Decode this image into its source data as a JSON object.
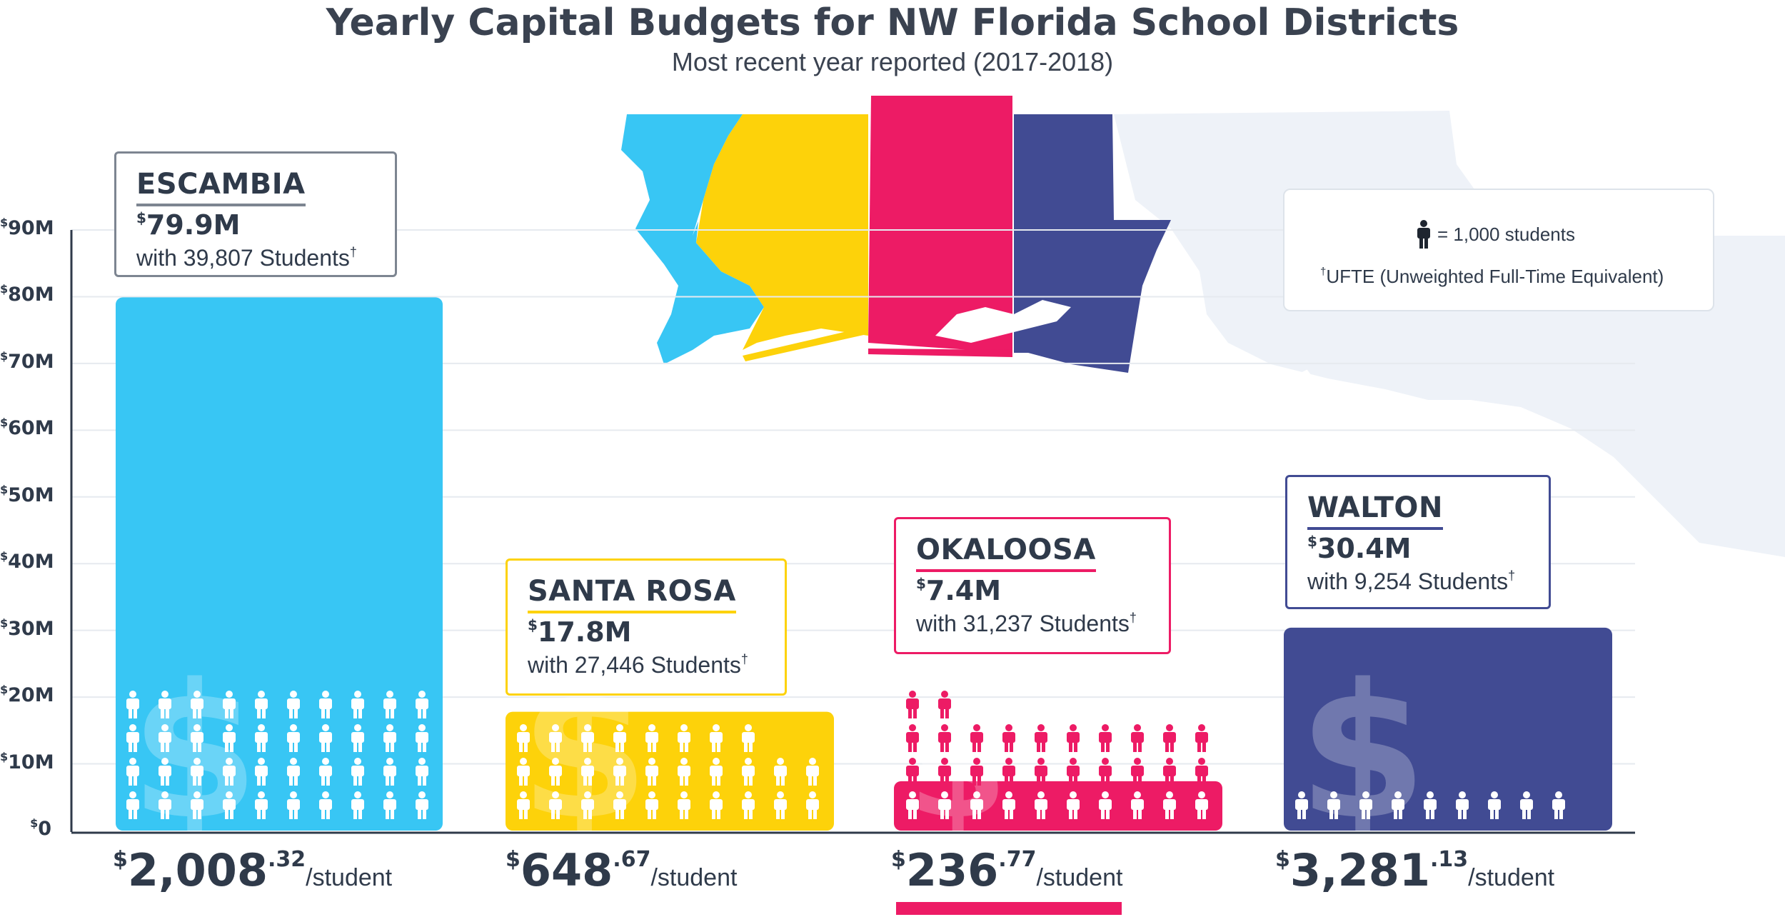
{
  "chart_data": {
    "type": "bar",
    "title": "Yearly Capital Budgets for NW Florida School Districts",
    "subtitle": "Most recent year reported (2017-2018)",
    "ylim": [
      0,
      90
    ],
    "yticks": [
      {
        "sup": "$",
        "label": "90M",
        "value": 90
      },
      {
        "sup": "$",
        "label": "80M",
        "value": 80
      },
      {
        "sup": "$",
        "label": "70M",
        "value": 70
      },
      {
        "sup": "$",
        "label": "60M",
        "value": 60
      },
      {
        "sup": "$",
        "label": "50M",
        "value": 50
      },
      {
        "sup": "$",
        "label": "40M",
        "value": 40
      },
      {
        "sup": "$",
        "label": "30M",
        "value": 30
      },
      {
        "sup": "$",
        "label": "20M",
        "value": 20
      },
      {
        "sup": "$",
        "label": "10M",
        "value": 10
      },
      {
        "sup": "$",
        "label": "0",
        "value": 0
      }
    ],
    "grid": true,
    "categories": [
      "ESCAMBIA",
      "SANTA ROSA",
      "OKALOOSA",
      "WALTON"
    ],
    "values": [
      79.9,
      17.8,
      7.4,
      30.4
    ],
    "students": [
      39807,
      27446,
      31237,
      9254
    ],
    "icon_counts": [
      40,
      28,
      32,
      9
    ],
    "series": [
      {
        "name": "ESCAMBIA",
        "value": 79.9,
        "color": "#38c6f4",
        "amount_label": "79.9M",
        "students_label": "with 39,807 Students",
        "per_student_whole": "2,008",
        "per_student_cents": ".32"
      },
      {
        "name": "SANTA ROSA",
        "value": 17.8,
        "color": "#fdd20a",
        "amount_label": "17.8M",
        "students_label": "with 27,446 Students",
        "per_student_whole": "648",
        "per_student_cents": ".67"
      },
      {
        "name": "OKALOOSA",
        "value": 7.4,
        "color": "#ed1b65",
        "amount_label": "7.4M",
        "students_label": "with 31,237 Students",
        "per_student_whole": "236",
        "per_student_cents": ".77"
      },
      {
        "name": "WALTON",
        "value": 30.4,
        "color": "#414b93",
        "amount_label": "30.4M",
        "students_label": "with 9,254 Students",
        "per_student_whole": "3,281",
        "per_student_cents": ".13"
      }
    ],
    "legend": {
      "icon_label": "= 1,000 students",
      "footnote": "UFTE (Unweighted Full-Time Equivalent)",
      "footnote_mark": "†",
      "placement": "top-right"
    }
  },
  "labels": {
    "dollar": "$",
    "dagger": "†",
    "per_student_unit": "/student"
  },
  "colors": {
    "text": "#2f3a4a",
    "grid": "#e6eaef",
    "map_background": "#edf1f7"
  }
}
